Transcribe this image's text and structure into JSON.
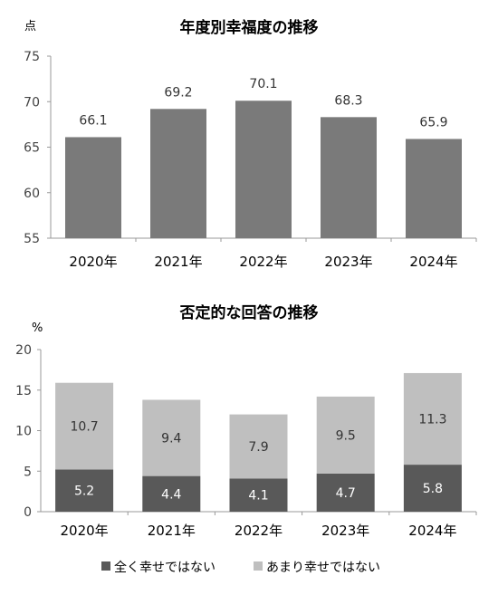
{
  "chart_data": [
    {
      "type": "bar",
      "title": "年度別幸福度の推移",
      "ylabel": "点",
      "categories": [
        "2020年",
        "2021年",
        "2022年",
        "2023年",
        "2024年"
      ],
      "values": [
        66.1,
        69.2,
        70.1,
        68.3,
        65.9
      ],
      "ylim": [
        55,
        75
      ],
      "yticks": [
        55,
        60,
        65,
        70,
        75
      ],
      "color": "#7a7a7a",
      "grid": false
    },
    {
      "type": "bar",
      "stacked": true,
      "title": "否定的な回答の推移",
      "ylabel": "%",
      "categories": [
        "2020年",
        "2021年",
        "2022年",
        "2023年",
        "2024年"
      ],
      "series": [
        {
          "name": "全く幸せではない",
          "values": [
            5.2,
            4.4,
            4.1,
            4.7,
            5.8
          ],
          "color": "#595959"
        },
        {
          "name": "あまり幸せではない",
          "values": [
            10.7,
            9.4,
            7.9,
            9.5,
            11.3
          ],
          "color": "#bfbfbf"
        }
      ],
      "ylim": [
        0,
        20
      ],
      "yticks": [
        0,
        5,
        10,
        15,
        20
      ],
      "legend": "bottom",
      "grid": false
    }
  ]
}
